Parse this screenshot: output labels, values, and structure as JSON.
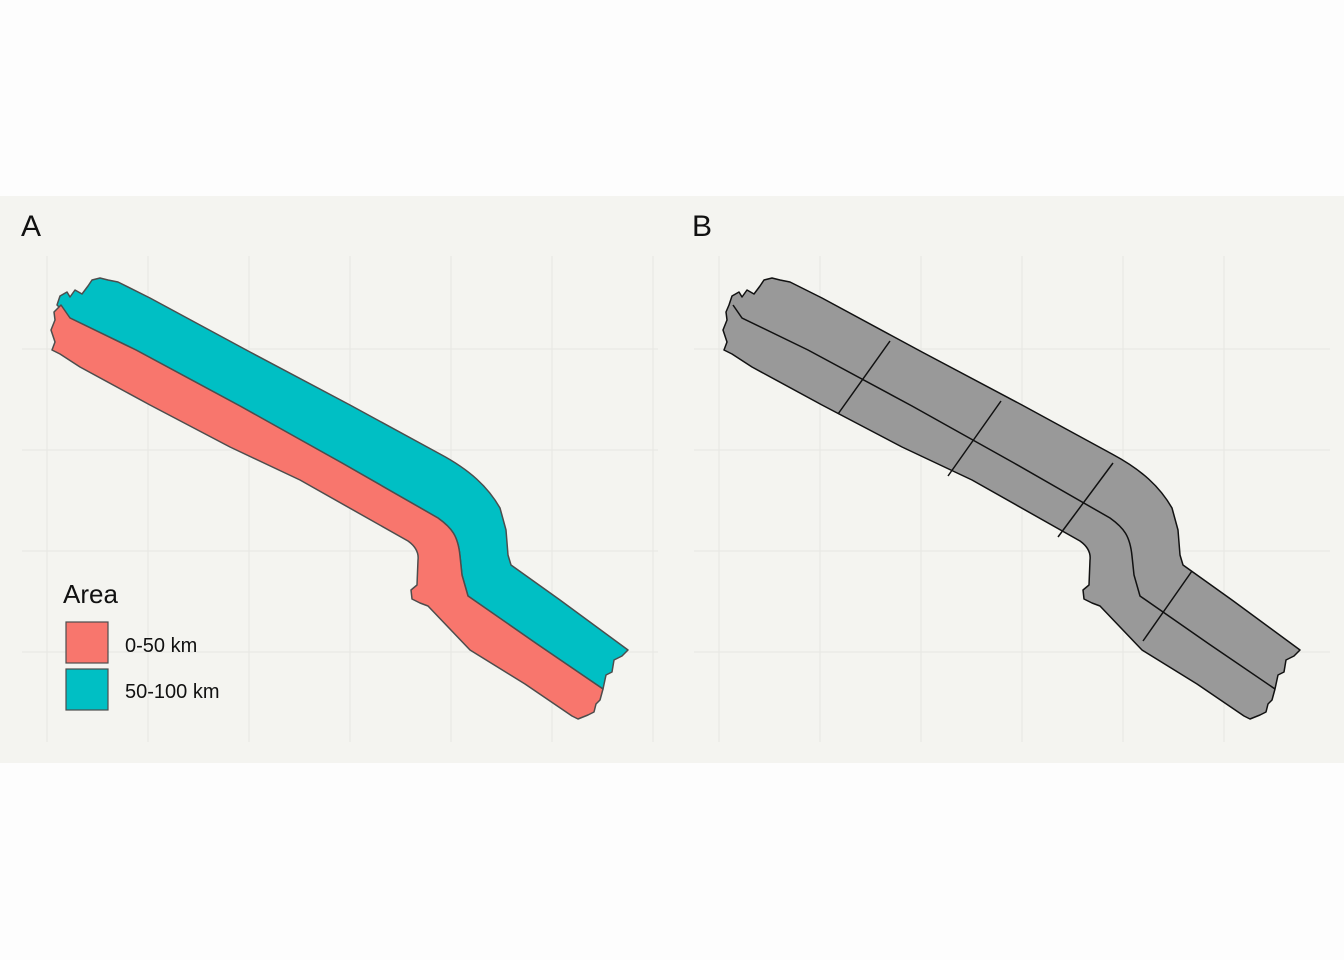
{
  "panels": [
    {
      "label": "A"
    },
    {
      "label": "B"
    }
  ],
  "legend": {
    "title": "Area",
    "items": [
      {
        "label": "0-50 km",
        "color": "#F8766D"
      },
      {
        "label": "50-100 km",
        "color": "#00BFC4"
      }
    ]
  },
  "colors": {
    "band_near": "#F8766D",
    "band_far": "#00BFC4",
    "segments_fill": "#999999",
    "panel_background": "#F4F4F0",
    "grid": "#E6E6E2",
    "outline_a": "#4d4d4d",
    "outline_b": "#111111"
  }
}
